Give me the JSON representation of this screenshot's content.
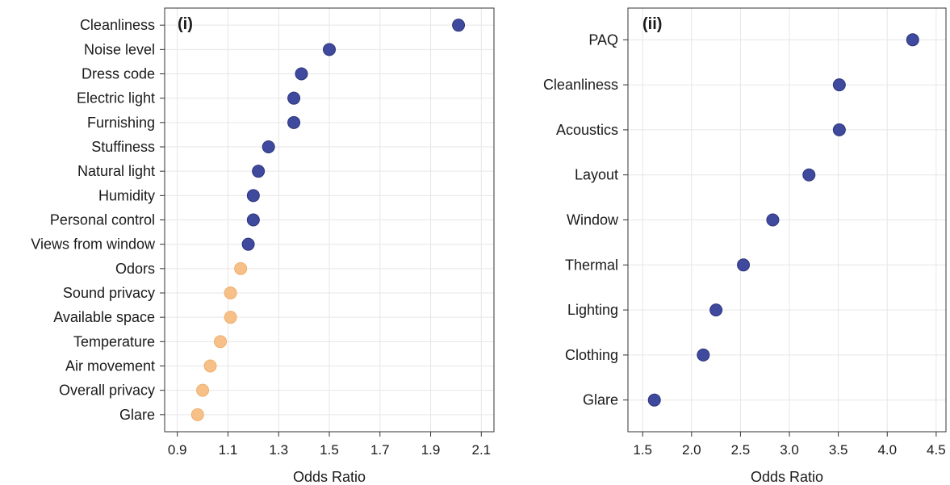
{
  "chart_data": [
    {
      "type": "scatter",
      "panel_label": "(i)",
      "xlabel": "Odds Ratio",
      "xlim": [
        0.85,
        2.15
      ],
      "xticks": [
        0.9,
        1.1,
        1.3,
        1.5,
        1.7,
        1.9,
        2.1
      ],
      "xtick_labels": [
        "0.9",
        "1.1",
        "1.3",
        "1.5",
        "1.7",
        "1.9",
        "2.1"
      ],
      "grid": true,
      "categories": [
        "Cleanliness",
        "Noise level",
        "Dress code",
        "Electric light",
        "Furnishing",
        "Stuffiness",
        "Natural light",
        "Humidity",
        "Personal control",
        "Views from window",
        "Odors",
        "Sound privacy",
        "Available space",
        "Temperature",
        "Air movement",
        "Overall privacy",
        "Glare"
      ],
      "values": [
        2.01,
        1.5,
        1.39,
        1.36,
        1.36,
        1.26,
        1.22,
        1.2,
        1.2,
        1.18,
        1.15,
        1.11,
        1.11,
        1.07,
        1.03,
        1.0,
        0.98
      ],
      "colors": [
        "#3f4a9e",
        "#3f4a9e",
        "#3f4a9e",
        "#3f4a9e",
        "#3f4a9e",
        "#3f4a9e",
        "#3f4a9e",
        "#3f4a9e",
        "#3f4a9e",
        "#3f4a9e",
        "#f7c088",
        "#f7c088",
        "#f7c088",
        "#f7c088",
        "#f7c088",
        "#f7c088",
        "#f7c088"
      ]
    },
    {
      "type": "scatter",
      "panel_label": "(ii)",
      "xlabel": "Odds Ratio",
      "xlim": [
        1.35,
        4.6
      ],
      "xticks": [
        1.5,
        2.0,
        2.5,
        3.0,
        3.5,
        4.0,
        4.5
      ],
      "xtick_labels": [
        "1.5",
        "2.0",
        "2.5",
        "3.0",
        "3.5",
        "4.0",
        "4.5"
      ],
      "grid": true,
      "categories": [
        "PAQ",
        "Cleanliness",
        "Acoustics",
        "Layout",
        "Window",
        "Thermal",
        "Lighting",
        "Clothing",
        "Glare"
      ],
      "values": [
        4.26,
        3.51,
        3.51,
        3.2,
        2.83,
        2.53,
        2.25,
        2.12,
        1.62
      ],
      "colors": [
        "#3f4a9e",
        "#3f4a9e",
        "#3f4a9e",
        "#3f4a9e",
        "#3f4a9e",
        "#3f4a9e",
        "#3f4a9e",
        "#3f4a9e",
        "#3f4a9e"
      ]
    }
  ]
}
